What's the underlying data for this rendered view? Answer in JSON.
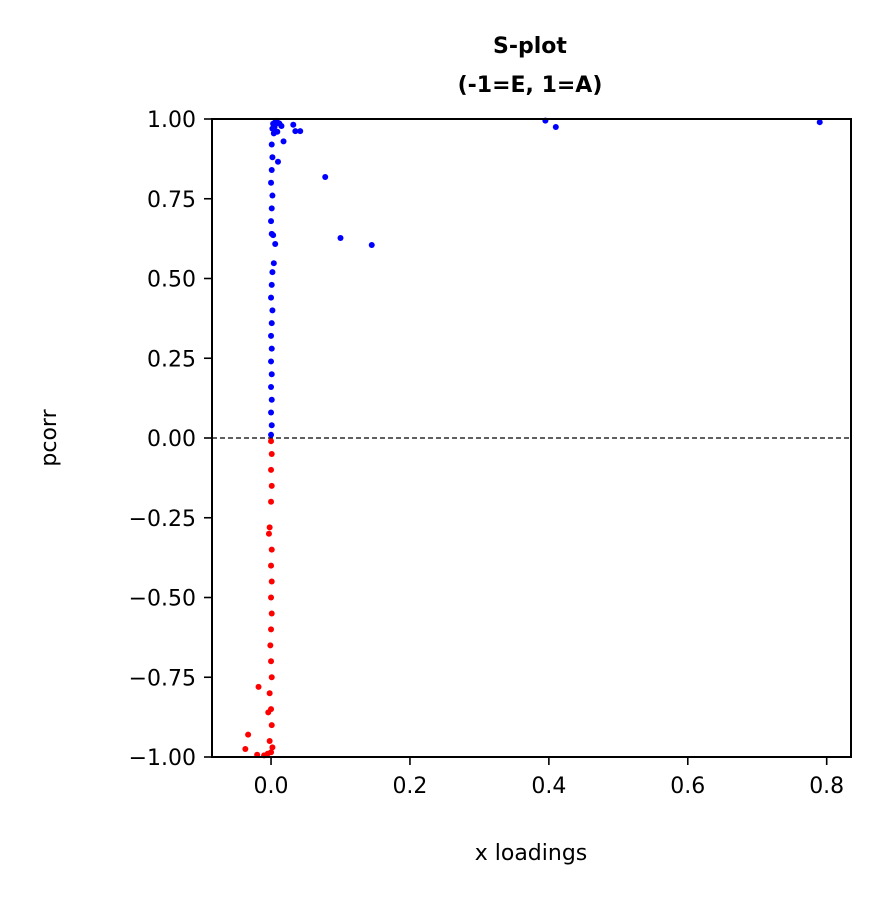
{
  "chart_data": {
    "type": "scatter",
    "title": "S-plot",
    "subtitle": "(-1=E, 1=A)",
    "xlabel": "x loadings",
    "ylabel": "pcorr",
    "xlim": [
      -0.085,
      0.835
    ],
    "ylim": [
      -1.0,
      1.0
    ],
    "xticks": [
      0.0,
      0.2,
      0.4,
      0.6,
      0.8
    ],
    "xtick_labels": [
      "0.0",
      "0.2",
      "0.4",
      "0.6",
      "0.8"
    ],
    "yticks": [
      1.0,
      0.75,
      0.5,
      0.25,
      0.0,
      -0.25,
      -0.5,
      -0.75,
      -1.0
    ],
    "ytick_labels": [
      "1.00",
      "0.75",
      "0.50",
      "0.25",
      "0.00",
      "−0.25",
      "−0.50",
      "−0.75",
      "−1.00"
    ],
    "reference_line": {
      "y": 0.0,
      "style": "dashed",
      "color": "#000000"
    },
    "grid": false,
    "series": [
      {
        "color": "#0000ff",
        "points": [
          [
            0.79,
            0.99
          ],
          [
            0.395,
            0.995
          ],
          [
            0.41,
            0.975
          ],
          [
            0.145,
            0.605
          ],
          [
            0.1,
            0.627
          ],
          [
            0.078,
            0.818
          ],
          [
            0.042,
            0.962
          ],
          [
            0.035,
            0.962
          ],
          [
            0.032,
            0.982
          ],
          [
            0.018,
            0.93
          ],
          [
            0.015,
            0.978
          ],
          [
            0.012,
            0.986
          ],
          [
            0.01,
            0.866
          ],
          [
            0.009,
            0.96
          ],
          [
            0.008,
            0.994
          ],
          [
            0.006,
            0.99
          ],
          [
            0.005,
            0.975
          ],
          [
            0.004,
            0.955
          ],
          [
            0.003,
            0.985
          ],
          [
            0.002,
            0.97
          ],
          [
            0.007,
            0.985
          ],
          [
            0.001,
            0.92
          ],
          [
            0.002,
            0.88
          ],
          [
            0.001,
            0.84
          ],
          [
            0.0,
            0.8
          ],
          [
            0.002,
            0.76
          ],
          [
            0.001,
            0.72
          ],
          [
            0.0,
            0.68
          ],
          [
            0.001,
            0.64
          ],
          [
            0.003,
            0.636
          ],
          [
            0.006,
            0.608
          ],
          [
            0.004,
            0.548
          ],
          [
            0.002,
            0.52
          ],
          [
            0.001,
            0.48
          ],
          [
            0.0,
            0.44
          ],
          [
            0.002,
            0.4
          ],
          [
            0.001,
            0.36
          ],
          [
            0.0,
            0.32
          ],
          [
            0.001,
            0.28
          ],
          [
            0.0,
            0.24
          ],
          [
            0.001,
            0.2
          ],
          [
            0.0,
            0.16
          ],
          [
            0.001,
            0.12
          ],
          [
            0.0,
            0.08
          ],
          [
            0.001,
            0.04
          ],
          [
            0.0,
            0.01
          ]
        ]
      },
      {
        "color": "#ff0000",
        "points": [
          [
            0.0,
            -0.01
          ],
          [
            0.001,
            -0.05
          ],
          [
            0.0,
            -0.1
          ],
          [
            0.001,
            -0.15
          ],
          [
            0.0,
            -0.2
          ],
          [
            -0.002,
            -0.28
          ],
          [
            -0.003,
            -0.3
          ],
          [
            0.001,
            -0.35
          ],
          [
            0.0,
            -0.4
          ],
          [
            0.001,
            -0.45
          ],
          [
            0.0,
            -0.5
          ],
          [
            0.001,
            -0.55
          ],
          [
            0.0,
            -0.6
          ],
          [
            -0.001,
            -0.65
          ],
          [
            0.0,
            -0.7
          ],
          [
            0.001,
            -0.75
          ],
          [
            -0.002,
            -0.8
          ],
          [
            0.0,
            -0.85
          ],
          [
            -0.004,
            -0.86
          ],
          [
            0.001,
            -0.9
          ],
          [
            -0.002,
            -0.95
          ],
          [
            -0.018,
            -0.78
          ],
          [
            -0.033,
            -0.93
          ],
          [
            -0.037,
            -0.975
          ],
          [
            -0.02,
            -0.993
          ],
          [
            -0.01,
            -0.995
          ],
          [
            -0.005,
            -0.99
          ],
          [
            0.0,
            -0.985
          ],
          [
            0.002,
            -0.97
          ]
        ]
      }
    ]
  }
}
